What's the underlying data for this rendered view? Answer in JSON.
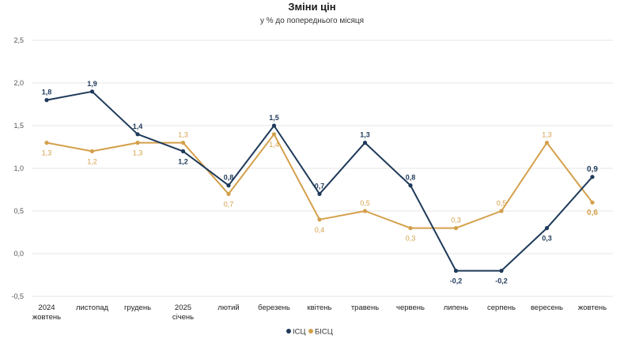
{
  "chart_data": {
    "type": "line",
    "title": "Зміни цін",
    "subtitle": "у % до попереднього місяця",
    "categories": [
      [
        "2024",
        "жовтень"
      ],
      [
        "листопад"
      ],
      [
        "грудень"
      ],
      [
        "2025",
        "січень"
      ],
      [
        "лютий"
      ],
      [
        "березень"
      ],
      [
        "квітень"
      ],
      [
        "травень"
      ],
      [
        "червень"
      ],
      [
        "липень"
      ],
      [
        "серпень"
      ],
      [
        "вересень"
      ],
      [
        "жовтень"
      ]
    ],
    "ylim": [
      -0.5,
      2.5
    ],
    "yticks": [
      "-0,5",
      "0,0",
      "0,5",
      "1,0",
      "1,5",
      "2,0",
      "2,5"
    ],
    "ytick_values": [
      -0.5,
      0,
      0.5,
      1.0,
      1.5,
      2.0,
      2.5
    ],
    "grid": "horizontal",
    "legend_position": "bottom-center",
    "series": [
      {
        "name": "ІСЦ",
        "color": "#1f3a5a",
        "values": [
          1.8,
          1.9,
          1.4,
          1.2,
          0.8,
          1.5,
          0.7,
          1.3,
          0.8,
          -0.2,
          -0.2,
          0.3,
          0.9
        ],
        "labels": [
          "1,8",
          "1,9",
          "1,4",
          "1,2",
          "0,8",
          "1,5",
          "0,7",
          "1,3",
          "0,8",
          "-0,2",
          "-0,2",
          "0,3",
          "0,9"
        ],
        "label_pos": [
          "above",
          "above",
          "above",
          "below",
          "above",
          "above",
          "above",
          "above",
          "above",
          "below",
          "below",
          "below",
          "above"
        ]
      },
      {
        "name": "БІСЦ",
        "color": "#d4a04b",
        "values": [
          1.3,
          1.2,
          1.3,
          1.3,
          0.7,
          1.4,
          0.4,
          0.5,
          0.3,
          0.3,
          0.5,
          1.3,
          0.6
        ],
        "labels": [
          "1,3",
          "1,2",
          "1,3",
          "1,3",
          "0,7",
          "1,4",
          "0,4",
          "0,5",
          "0,3",
          "0,3",
          "0,5",
          "1,3",
          "0,6"
        ],
        "label_pos": [
          "below",
          "below",
          "below",
          "above",
          "below",
          "below",
          "below",
          "above",
          "below",
          "above",
          "above",
          "above",
          "below"
        ]
      }
    ]
  }
}
